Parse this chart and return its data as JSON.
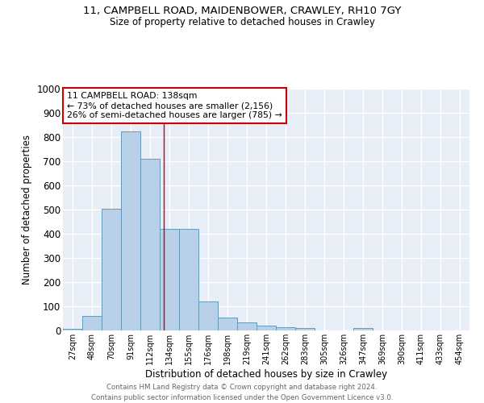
{
  "title1": "11, CAMPBELL ROAD, MAIDENBOWER, CRAWLEY, RH10 7GY",
  "title2": "Size of property relative to detached houses in Crawley",
  "xlabel": "Distribution of detached houses by size in Crawley",
  "ylabel": "Number of detached properties",
  "categories": [
    "27sqm",
    "48sqm",
    "70sqm",
    "91sqm",
    "112sqm",
    "134sqm",
    "155sqm",
    "176sqm",
    "198sqm",
    "219sqm",
    "241sqm",
    "262sqm",
    "283sqm",
    "305sqm",
    "326sqm",
    "347sqm",
    "369sqm",
    "390sqm",
    "411sqm",
    "433sqm",
    "454sqm"
  ],
  "values": [
    8,
    60,
    505,
    822,
    710,
    420,
    420,
    120,
    55,
    35,
    20,
    13,
    10,
    0,
    0,
    10,
    0,
    0,
    0,
    0,
    0
  ],
  "bar_color": "#b8d0e8",
  "bar_edge_color": "#6699bb",
  "annotation_line": "11 CAMPBELL ROAD: 138sqm",
  "annotation_smaller": "← 73% of detached houses are smaller (2,156)",
  "annotation_larger": "26% of semi-detached houses are larger (785) →",
  "annotation_box_color": "#ffffff",
  "annotation_box_edge": "#cc0000",
  "vline_color": "#cc0000",
  "footer1": "Contains HM Land Registry data © Crown copyright and database right 2024.",
  "footer2": "Contains public sector information licensed under the Open Government Licence v3.0.",
  "ylim": [
    0,
    1000
  ],
  "background_color": "#e8eef8"
}
